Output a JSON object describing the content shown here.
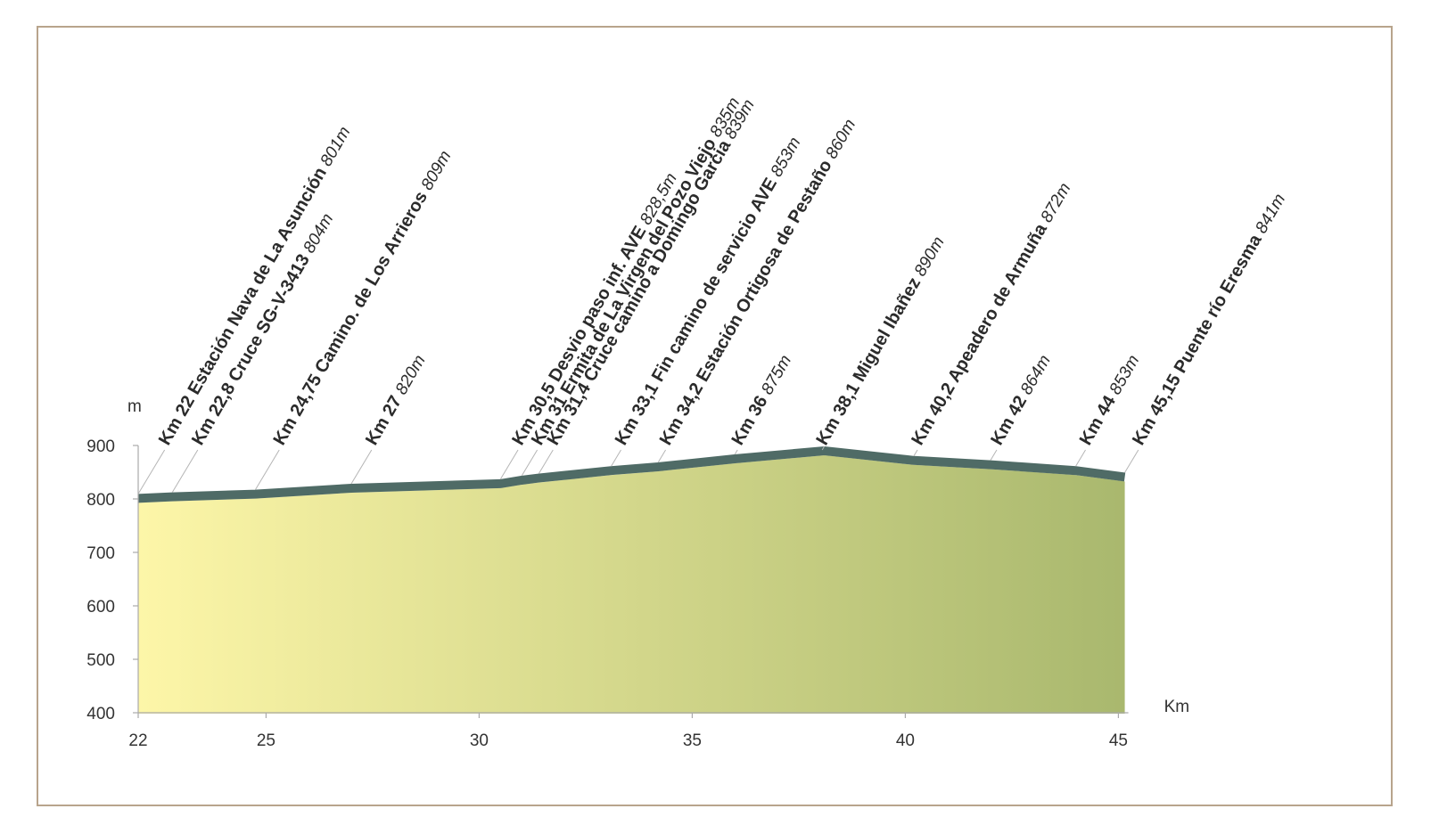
{
  "chart_data": {
    "type": "area",
    "title": "",
    "xlabel": "Km",
    "ylabel": "m",
    "xlim": [
      22,
      45.15
    ],
    "ylim": [
      400,
      900
    ],
    "x_ticks": [
      22,
      25,
      30,
      35,
      40,
      45
    ],
    "y_ticks": [
      400,
      500,
      600,
      700,
      800,
      900
    ],
    "series": [
      {
        "x": [
          22,
          22.8,
          24.75,
          27,
          30.5,
          31,
          31.4,
          33.1,
          34.2,
          36,
          38.1,
          40.2,
          42,
          44,
          45.15
        ],
        "y": [
          801,
          804,
          809,
          820,
          828.5,
          835,
          839,
          853,
          860,
          875,
          890,
          872,
          864,
          853,
          841
        ]
      }
    ],
    "waypoints": [
      {
        "label": "Km 22 Estación Nava de La Asunción",
        "elev": "801m"
      },
      {
        "label": "Km 22,8 Cruce SG-V-3413",
        "elev": "804m"
      },
      {
        "label": "Km 24,75 Camino. de Los Arrieros",
        "elev": "809m"
      },
      {
        "label": "Km 27",
        "elev": "820m"
      },
      {
        "label": "Km 30,5 Desvio paso inf. AVE",
        "elev": "828,5m"
      },
      {
        "label": "Km 31 Ermita de La Virgen del Pozo Viejo",
        "elev": "835m"
      },
      {
        "label": "Km 31,4 Cruce camino a Domingo Garcia",
        "elev": "839m"
      },
      {
        "label": "Km 33,1 Fin camino de servicio AVE",
        "elev": "853m"
      },
      {
        "label": "Km 34,2 Estación Ortigosa de Pestaño",
        "elev": "860m"
      },
      {
        "label": "Km 36",
        "elev": "875m"
      },
      {
        "label": "Km 38,1 Miguel Ibañez",
        "elev": "890m"
      },
      {
        "label": "Km 40,2 Apeadero de Armuña",
        "elev": "872m"
      },
      {
        "label": "Km 42",
        "elev": "864m"
      },
      {
        "label": "Km 44",
        "elev": "853m"
      },
      {
        "label": "Km 45,15 Puente río Eresma",
        "elev": "841m"
      }
    ],
    "colors": {
      "fill_start": "#fdf6a8",
      "fill_end": "#a9b86e",
      "profile_line": "#4f6b66",
      "frame": "#b8a48c",
      "axis": "#aaaaaa"
    },
    "grid": false,
    "legend": "none"
  }
}
